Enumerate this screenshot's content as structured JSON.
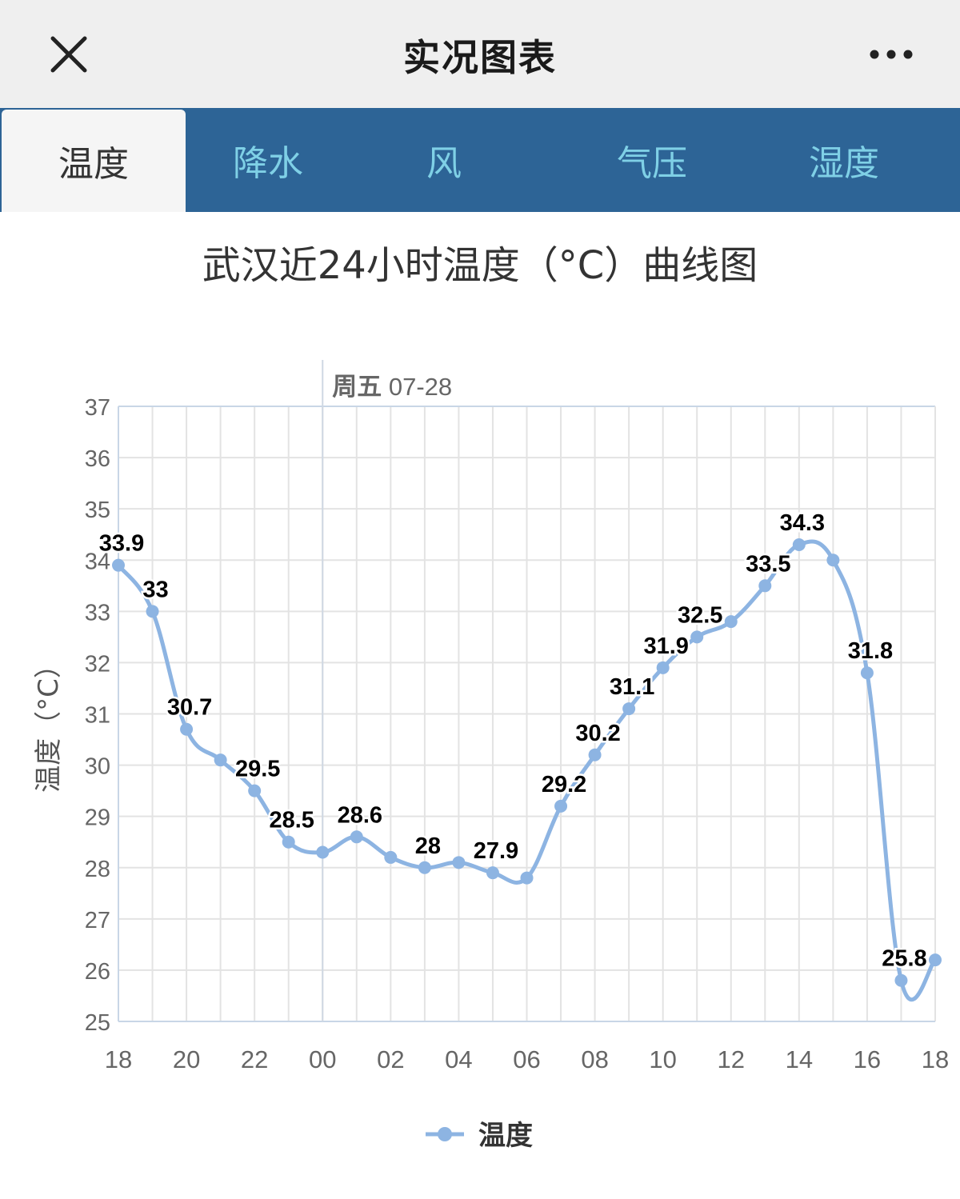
{
  "header": {
    "title": "实况图表",
    "close_icon": "close-icon",
    "more_icon": "more-horizontal-icon"
  },
  "tabs": [
    {
      "label": "温度",
      "active": true
    },
    {
      "label": "降水",
      "active": false
    },
    {
      "label": "风",
      "active": false
    },
    {
      "label": "气压",
      "active": false
    },
    {
      "label": "湿度",
      "active": false
    }
  ],
  "colors": {
    "tab_bar": "#2d6496",
    "tab_text": "#7fd0e6",
    "series": "#8db4e2",
    "label": "#000000"
  },
  "chart_data": {
    "type": "line",
    "title": "武汉近24小时温度（°C）曲线图",
    "ylabel": "温度（°C）",
    "xlabel": "",
    "ylim": [
      25,
      37
    ],
    "yticks": [
      25,
      26,
      27,
      28,
      29,
      30,
      31,
      32,
      33,
      34,
      35,
      36,
      37
    ],
    "xtick_labels": [
      "18",
      "20",
      "22",
      "00",
      "02",
      "04",
      "06",
      "08",
      "10",
      "12",
      "14",
      "16",
      "18"
    ],
    "day_marker": {
      "label_bold": "周五",
      "label_date": "07-28",
      "at_hour": "00"
    },
    "grid": true,
    "legend": "bottom-center",
    "series": [
      {
        "name": "温度",
        "x": [
          "18",
          "19",
          "20",
          "21",
          "22",
          "23",
          "00",
          "01",
          "02",
          "03",
          "04",
          "05",
          "06",
          "07",
          "08",
          "09",
          "10",
          "11",
          "12",
          "13",
          "14",
          "15",
          "16",
          "17",
          "18"
        ],
        "values": [
          33.9,
          33,
          30.7,
          30.1,
          29.5,
          28.5,
          28.3,
          28.6,
          28.2,
          28,
          28.1,
          27.9,
          27.8,
          29.2,
          30.2,
          31.1,
          31.9,
          32.5,
          32.8,
          33.5,
          34.3,
          34.0,
          31.8,
          25.8,
          26.2
        ],
        "data_labels": [
          "33.9",
          "33",
          "30.7",
          "",
          "29.5",
          "28.5",
          "",
          "28.6",
          "",
          "28",
          "",
          "27.9",
          "",
          "29.2",
          "30.2",
          "31.1",
          "31.9",
          "32.5",
          "",
          "33.5",
          "34.3",
          "",
          "31.8",
          "25.8",
          ""
        ]
      }
    ]
  }
}
